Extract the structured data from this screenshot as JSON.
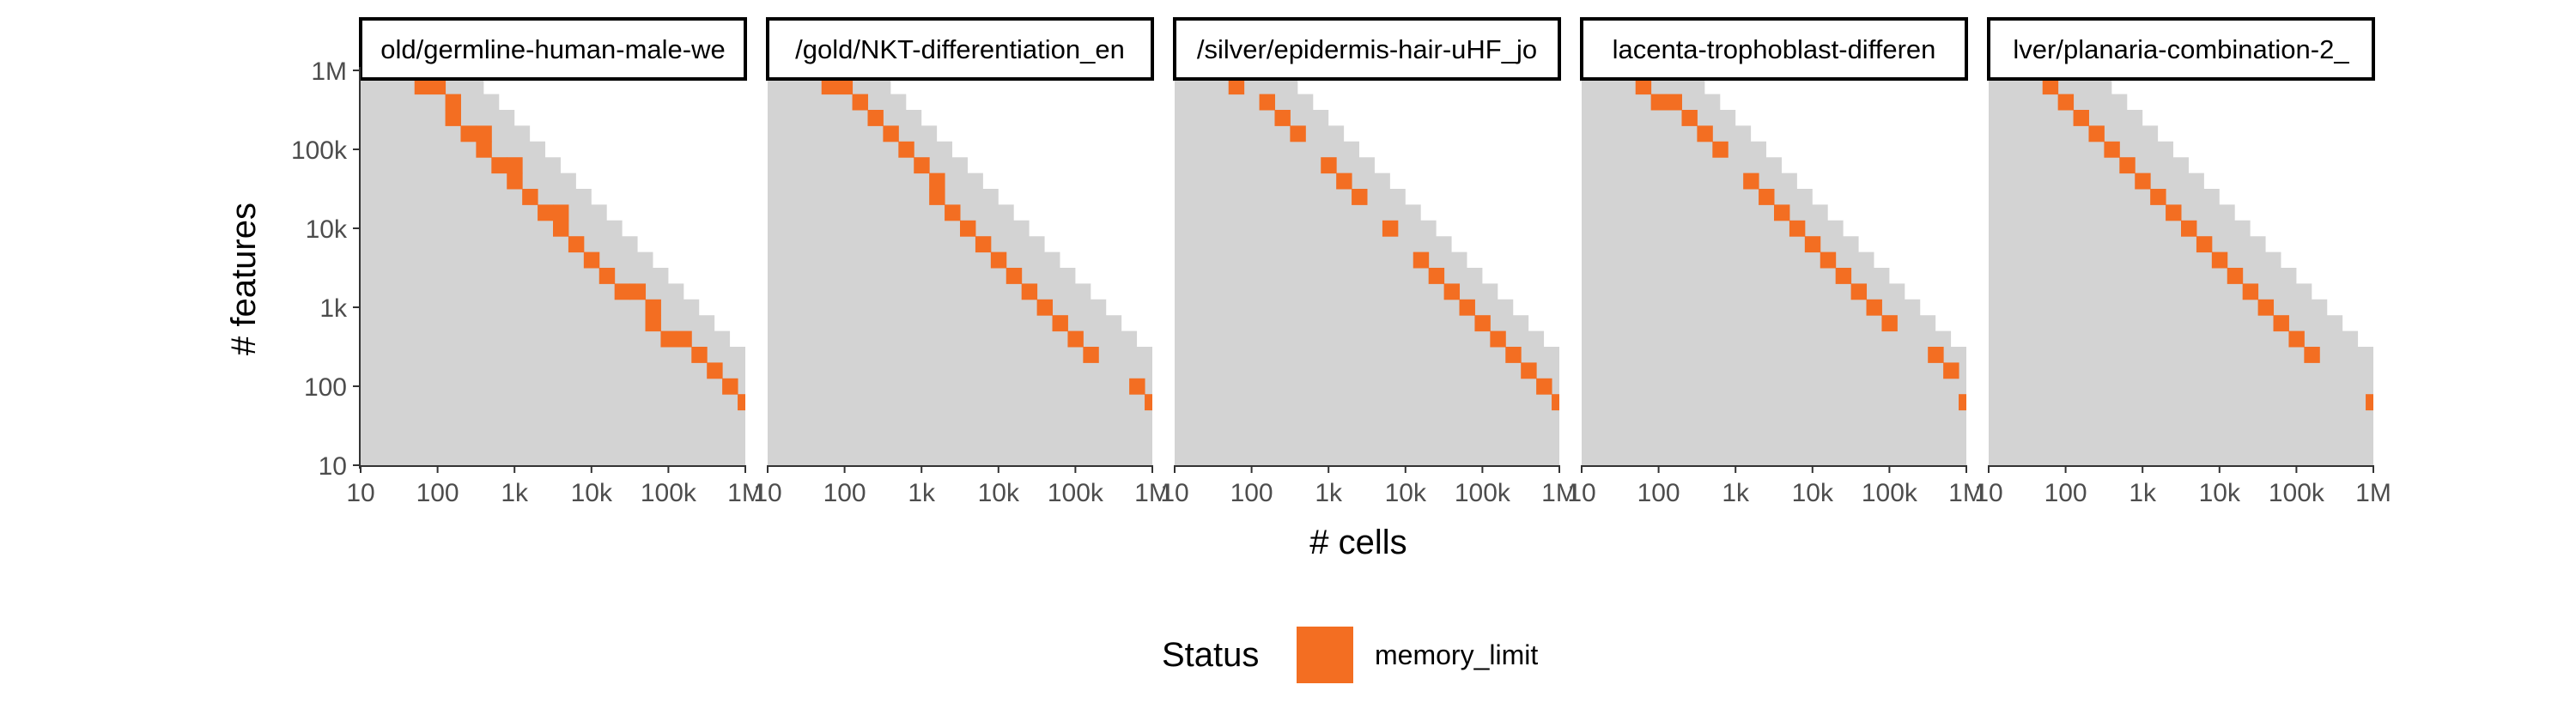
{
  "chart_data": {
    "type": "heatmap",
    "xlabel": "# cells",
    "ylabel": "# features",
    "x_scale": "log10",
    "y_scale": "log10",
    "xlim": [
      10,
      1000000
    ],
    "ylim": [
      10,
      1000000
    ],
    "x_ticks": [
      10,
      100,
      1000,
      10000,
      100000,
      1000000
    ],
    "x_tick_labels": [
      "10",
      "100",
      "1k",
      "10k",
      "100k",
      "1M"
    ],
    "y_ticks": [
      10,
      100,
      1000,
      10000,
      100000,
      1000000
    ],
    "y_tick_labels": [
      "10",
      "100",
      "1k",
      "10k",
      "100k",
      "1M"
    ],
    "background_fill": "#d3d3d3",
    "legend": {
      "title": "Status",
      "position": "bottom",
      "entries": [
        {
          "label": "memory_limit",
          "color": "#f36e22"
        }
      ]
    },
    "panels": [
      {
        "title": "old/germline-human-male-we",
        "memory_limit": [
          {
            "log10_cells": 1.6,
            "log10_features": 6.0
          },
          {
            "log10_cells": 1.8,
            "log10_features": 5.8
          },
          {
            "log10_cells": 2.0,
            "log10_features": 5.8
          },
          {
            "log10_cells": 2.2,
            "log10_features": 5.6
          },
          {
            "log10_cells": 2.2,
            "log10_features": 5.4
          },
          {
            "log10_cells": 2.4,
            "log10_features": 5.2
          },
          {
            "log10_cells": 2.6,
            "log10_features": 5.2
          },
          {
            "log10_cells": 2.6,
            "log10_features": 5.0
          },
          {
            "log10_cells": 2.8,
            "log10_features": 4.8
          },
          {
            "log10_cells": 3.0,
            "log10_features": 4.8
          },
          {
            "log10_cells": 3.0,
            "log10_features": 4.6
          },
          {
            "log10_cells": 3.2,
            "log10_features": 4.4
          },
          {
            "log10_cells": 3.4,
            "log10_features": 4.2
          },
          {
            "log10_cells": 3.6,
            "log10_features": 4.2
          },
          {
            "log10_cells": 3.6,
            "log10_features": 4.0
          },
          {
            "log10_cells": 3.8,
            "log10_features": 3.8
          },
          {
            "log10_cells": 4.0,
            "log10_features": 3.6
          },
          {
            "log10_cells": 4.2,
            "log10_features": 3.4
          },
          {
            "log10_cells": 4.4,
            "log10_features": 3.2
          },
          {
            "log10_cells": 4.6,
            "log10_features": 3.2
          },
          {
            "log10_cells": 4.8,
            "log10_features": 3.0
          },
          {
            "log10_cells": 4.8,
            "log10_features": 2.8
          },
          {
            "log10_cells": 5.0,
            "log10_features": 2.6
          },
          {
            "log10_cells": 5.2,
            "log10_features": 2.6
          },
          {
            "log10_cells": 5.4,
            "log10_features": 2.4
          },
          {
            "log10_cells": 5.6,
            "log10_features": 2.2
          },
          {
            "log10_cells": 5.8,
            "log10_features": 2.0
          },
          {
            "log10_cells": 6.0,
            "log10_features": 1.8
          }
        ]
      },
      {
        "title": "/gold/NKT-differentiation_en",
        "memory_limit": [
          {
            "log10_cells": 1.6,
            "log10_features": 6.0
          },
          {
            "log10_cells": 1.8,
            "log10_features": 5.8
          },
          {
            "log10_cells": 2.0,
            "log10_features": 6.0
          },
          {
            "log10_cells": 2.0,
            "log10_features": 5.8
          },
          {
            "log10_cells": 2.2,
            "log10_features": 5.6
          },
          {
            "log10_cells": 2.4,
            "log10_features": 5.4
          },
          {
            "log10_cells": 2.6,
            "log10_features": 5.2
          },
          {
            "log10_cells": 2.8,
            "log10_features": 5.0
          },
          {
            "log10_cells": 3.0,
            "log10_features": 4.8
          },
          {
            "log10_cells": 3.2,
            "log10_features": 4.6
          },
          {
            "log10_cells": 3.2,
            "log10_features": 4.4
          },
          {
            "log10_cells": 3.4,
            "log10_features": 4.2
          },
          {
            "log10_cells": 3.6,
            "log10_features": 4.0
          },
          {
            "log10_cells": 3.8,
            "log10_features": 3.8
          },
          {
            "log10_cells": 4.0,
            "log10_features": 3.6
          },
          {
            "log10_cells": 4.2,
            "log10_features": 3.4
          },
          {
            "log10_cells": 4.4,
            "log10_features": 3.2
          },
          {
            "log10_cells": 4.6,
            "log10_features": 3.0
          },
          {
            "log10_cells": 4.8,
            "log10_features": 2.8
          },
          {
            "log10_cells": 5.0,
            "log10_features": 2.6
          },
          {
            "log10_cells": 5.2,
            "log10_features": 2.4
          },
          {
            "log10_cells": 5.8,
            "log10_features": 2.0
          },
          {
            "log10_cells": 6.0,
            "log10_features": 1.8
          }
        ]
      },
      {
        "title": "/silver/epidermis-hair-uHF_jo",
        "memory_limit": [
          {
            "log10_cells": 1.8,
            "log10_features": 6.0
          },
          {
            "log10_cells": 1.8,
            "log10_features": 5.8
          },
          {
            "log10_cells": 2.2,
            "log10_features": 5.6
          },
          {
            "log10_cells": 2.4,
            "log10_features": 5.4
          },
          {
            "log10_cells": 2.6,
            "log10_features": 5.2
          },
          {
            "log10_cells": 3.0,
            "log10_features": 4.8
          },
          {
            "log10_cells": 3.2,
            "log10_features": 4.6
          },
          {
            "log10_cells": 3.4,
            "log10_features": 4.4
          },
          {
            "log10_cells": 3.8,
            "log10_features": 4.0
          },
          {
            "log10_cells": 4.2,
            "log10_features": 3.6
          },
          {
            "log10_cells": 4.4,
            "log10_features": 3.4
          },
          {
            "log10_cells": 4.6,
            "log10_features": 3.2
          },
          {
            "log10_cells": 4.8,
            "log10_features": 3.0
          },
          {
            "log10_cells": 5.0,
            "log10_features": 2.8
          },
          {
            "log10_cells": 5.2,
            "log10_features": 2.6
          },
          {
            "log10_cells": 5.4,
            "log10_features": 2.4
          },
          {
            "log10_cells": 5.6,
            "log10_features": 2.2
          },
          {
            "log10_cells": 5.8,
            "log10_features": 2.0
          },
          {
            "log10_cells": 6.0,
            "log10_features": 1.8
          }
        ]
      },
      {
        "title": "lacenta-trophoblast-differen",
        "memory_limit": [
          {
            "log10_cells": 1.6,
            "log10_features": 6.0
          },
          {
            "log10_cells": 1.8,
            "log10_features": 5.8
          },
          {
            "log10_cells": 2.0,
            "log10_features": 5.6
          },
          {
            "log10_cells": 2.2,
            "log10_features": 5.6
          },
          {
            "log10_cells": 2.4,
            "log10_features": 5.4
          },
          {
            "log10_cells": 2.6,
            "log10_features": 5.2
          },
          {
            "log10_cells": 2.8,
            "log10_features": 5.0
          },
          {
            "log10_cells": 3.2,
            "log10_features": 4.6
          },
          {
            "log10_cells": 3.4,
            "log10_features": 4.4
          },
          {
            "log10_cells": 3.6,
            "log10_features": 4.2
          },
          {
            "log10_cells": 3.8,
            "log10_features": 4.0
          },
          {
            "log10_cells": 4.0,
            "log10_features": 3.8
          },
          {
            "log10_cells": 4.2,
            "log10_features": 3.6
          },
          {
            "log10_cells": 4.4,
            "log10_features": 3.4
          },
          {
            "log10_cells": 4.6,
            "log10_features": 3.2
          },
          {
            "log10_cells": 4.8,
            "log10_features": 3.0
          },
          {
            "log10_cells": 5.0,
            "log10_features": 2.8
          },
          {
            "log10_cells": 5.6,
            "log10_features": 2.4
          },
          {
            "log10_cells": 5.8,
            "log10_features": 2.2
          },
          {
            "log10_cells": 6.0,
            "log10_features": 1.8
          }
        ]
      },
      {
        "title": "lver/planaria-combination-2_",
        "memory_limit": [
          {
            "log10_cells": 1.6,
            "log10_features": 6.0
          },
          {
            "log10_cells": 1.8,
            "log10_features": 5.8
          },
          {
            "log10_cells": 2.0,
            "log10_features": 5.6
          },
          {
            "log10_cells": 2.2,
            "log10_features": 5.4
          },
          {
            "log10_cells": 2.4,
            "log10_features": 5.2
          },
          {
            "log10_cells": 2.6,
            "log10_features": 5.0
          },
          {
            "log10_cells": 2.8,
            "log10_features": 4.8
          },
          {
            "log10_cells": 3.0,
            "log10_features": 4.6
          },
          {
            "log10_cells": 3.2,
            "log10_features": 4.4
          },
          {
            "log10_cells": 3.4,
            "log10_features": 4.2
          },
          {
            "log10_cells": 3.6,
            "log10_features": 4.0
          },
          {
            "log10_cells": 3.8,
            "log10_features": 3.8
          },
          {
            "log10_cells": 4.0,
            "log10_features": 3.6
          },
          {
            "log10_cells": 4.2,
            "log10_features": 3.4
          },
          {
            "log10_cells": 4.4,
            "log10_features": 3.2
          },
          {
            "log10_cells": 4.6,
            "log10_features": 3.0
          },
          {
            "log10_cells": 4.8,
            "log10_features": 2.8
          },
          {
            "log10_cells": 5.0,
            "log10_features": 2.6
          },
          {
            "log10_cells": 5.2,
            "log10_features": 2.4
          },
          {
            "log10_cells": 6.0,
            "log10_features": 1.8
          }
        ]
      }
    ]
  }
}
